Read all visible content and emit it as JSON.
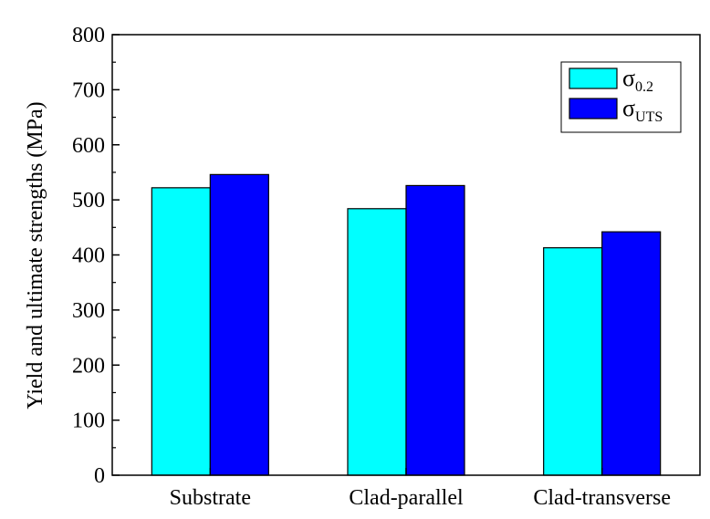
{
  "chart_data": {
    "type": "bar",
    "categories": [
      "Substrate",
      "Clad-parallel",
      "Clad-transverse"
    ],
    "series": [
      {
        "name_symbol": "σ",
        "name_subscript": "0.2",
        "color": "#00FFFF",
        "values": [
          522,
          484,
          413
        ]
      },
      {
        "name_symbol": "σ",
        "name_subscript": "UTS",
        "color": "#0000FF",
        "values": [
          546,
          526,
          442
        ]
      }
    ],
    "xlabel": "",
    "ylabel": "Yield and ultimate strengths (MPa)",
    "ylim": [
      0,
      800
    ],
    "yticks": [
      "0",
      "100",
      "200",
      "300",
      "400",
      "500",
      "600",
      "700",
      "800"
    ],
    "grid": false,
    "legend": "top-right"
  }
}
